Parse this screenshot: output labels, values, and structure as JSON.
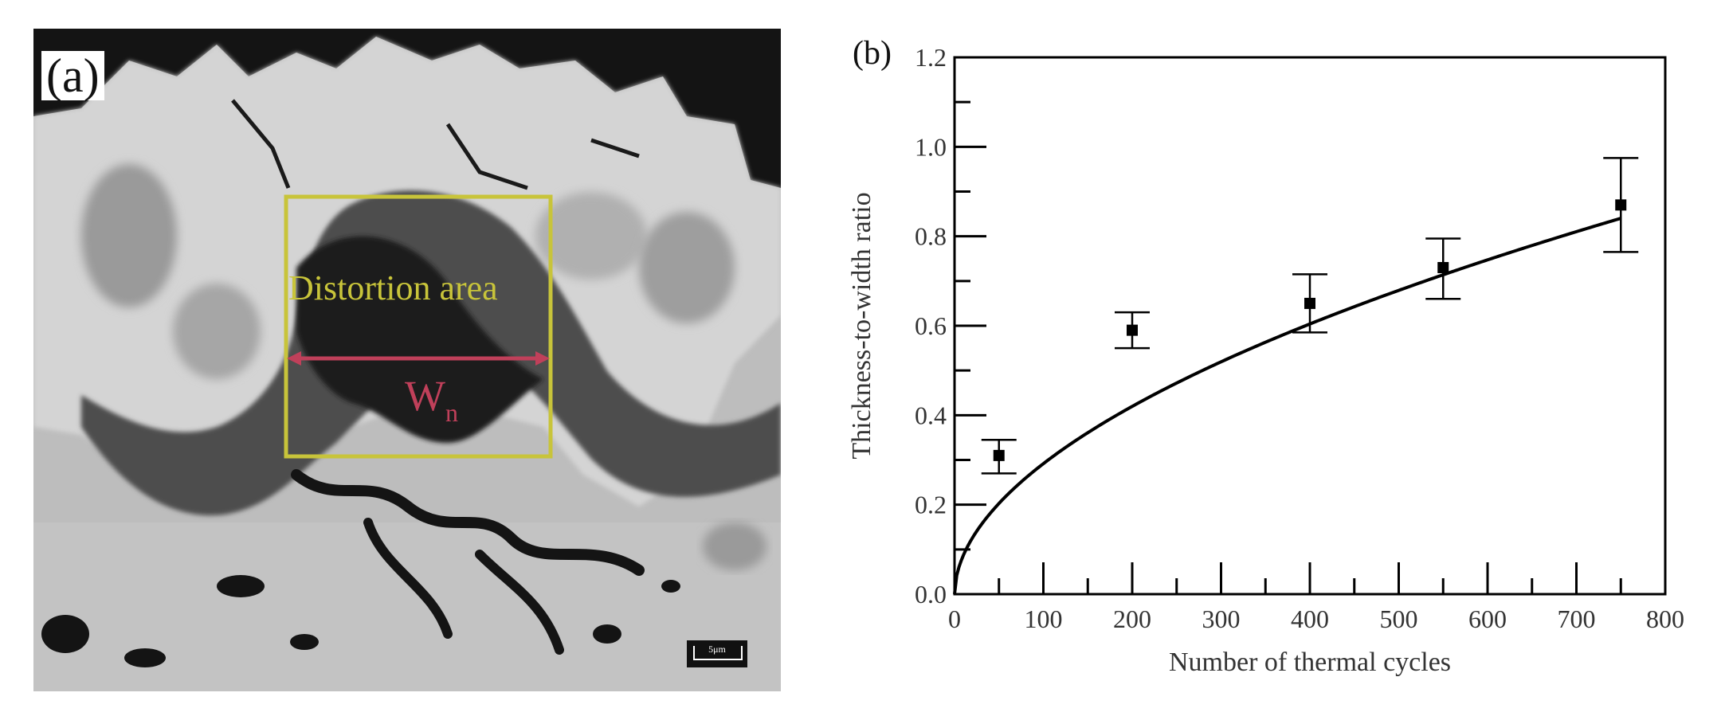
{
  "panel_a": {
    "label": "(a)",
    "box_label": "Distortion area",
    "width_symbol": "W",
    "width_subscript": "n",
    "scale_bar": "5μm",
    "colors": {
      "box": "#c8c43a",
      "arrow": "#c0405a"
    }
  },
  "chart_data": {
    "type": "scatter",
    "panel_label": "(b)",
    "title": "",
    "xlabel": "Number of thermal cycles",
    "ylabel": "Thickness-to-width ratio",
    "xlim": [
      0,
      800
    ],
    "ylim": [
      0,
      1.2
    ],
    "xticks": [
      "0",
      "100",
      "200",
      "300",
      "400",
      "500",
      "600",
      "700",
      "800"
    ],
    "yticks": [
      "0.0",
      "0.2",
      "0.4",
      "0.6",
      "0.8",
      "1.0",
      "1.2"
    ],
    "grid": false,
    "legend": "none",
    "series": [
      {
        "x": [
          50,
          200,
          400,
          550,
          750
        ],
        "y": [
          0.31,
          0.59,
          0.65,
          0.73,
          0.87
        ],
        "err_low": [
          0.04,
          0.04,
          0.065,
          0.07,
          0.105
        ],
        "err_high": [
          0.035,
          0.04,
          0.065,
          0.065,
          0.105
        ]
      }
    ],
    "fit_curve": {
      "formula": "y = 0.026 * x^0.525",
      "x_range": [
        0,
        750
      ]
    }
  }
}
